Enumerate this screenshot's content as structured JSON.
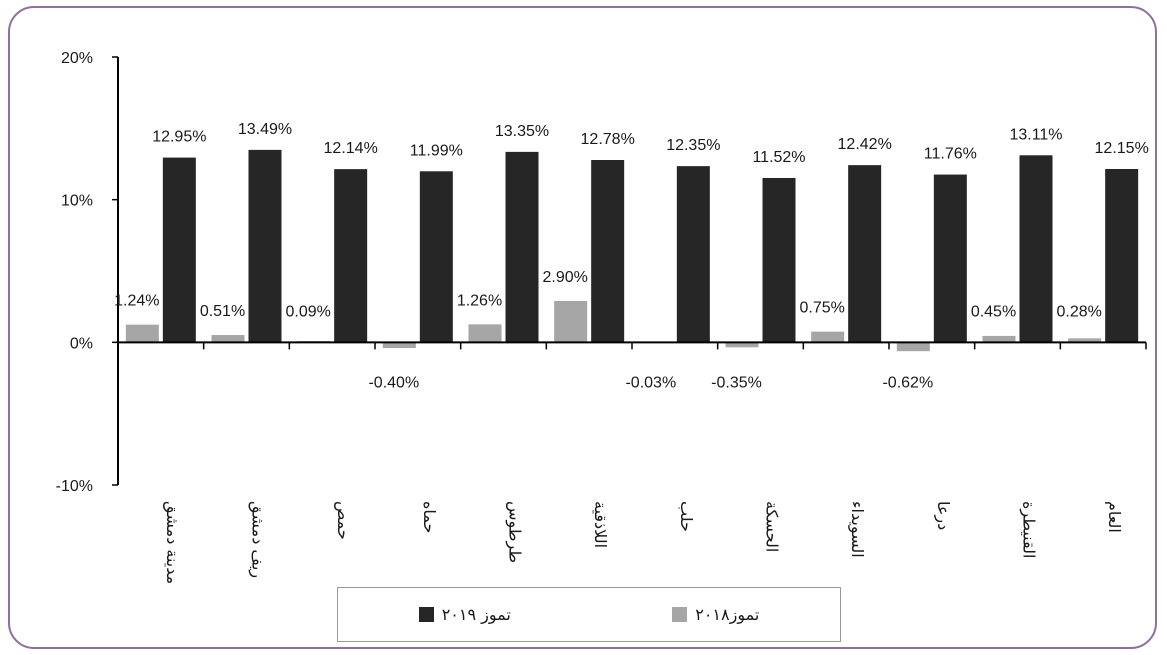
{
  "chart_data": {
    "type": "bar",
    "categories": [
      "مدينة دمشق",
      "ريف دمشق",
      "حمص",
      "حماه",
      "طرطوس",
      "اللاذقية",
      "حلب",
      "الحسكة",
      "السويداء",
      "درعا",
      "القنيطرة",
      "العام"
    ],
    "series": [
      {
        "name": "تموز٢٠١٨",
        "color": "#a6a6a6",
        "values": [
          1.24,
          0.51,
          0.09,
          -0.4,
          1.26,
          2.9,
          -0.03,
          -0.35,
          0.75,
          -0.62,
          0.45,
          0.28
        ],
        "labels": [
          "1.24%",
          "0.51%",
          "0.09%",
          "-0.40%",
          "1.26%",
          "2.90%",
          "-0.03%",
          "-0.35%",
          "0.75%",
          "-0.62%",
          "0.45%",
          "0.28%"
        ]
      },
      {
        "name": "تموز ٢٠١٩",
        "color": "#262626",
        "values": [
          12.95,
          13.49,
          12.14,
          11.99,
          13.35,
          12.78,
          12.35,
          11.52,
          12.42,
          11.76,
          13.11,
          12.15
        ],
        "labels": [
          "12.95%",
          "13.49%",
          "12.14%",
          "11.99%",
          "13.35%",
          "12.78%",
          "12.35%",
          "11.52%",
          "12.42%",
          "11.76%",
          "13.11%",
          "12.15%"
        ]
      }
    ],
    "ylim": [
      -10,
      20
    ],
    "yticks": [
      -10,
      0,
      10,
      20
    ],
    "ytick_labels": [
      "-10%",
      "0%",
      "10%",
      "20%"
    ],
    "grid": false,
    "legend_position": "bottom"
  }
}
